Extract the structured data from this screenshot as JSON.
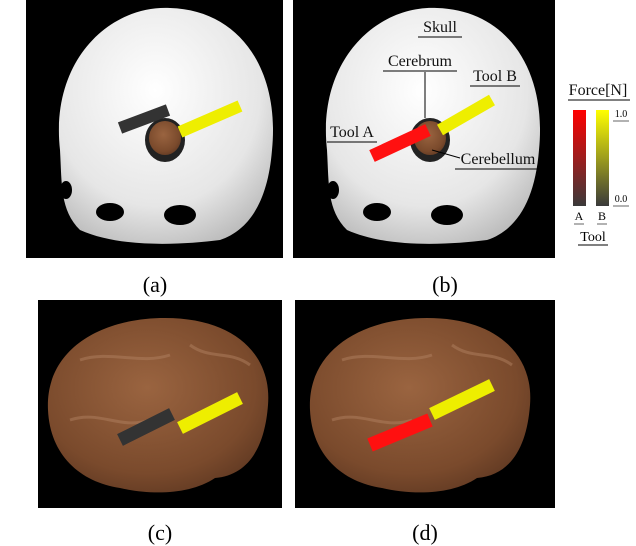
{
  "panels": [
    {
      "caption": "(a)"
    },
    {
      "caption": "(b)"
    },
    {
      "caption": "(c)"
    },
    {
      "caption": "(d)"
    }
  ],
  "annotations": {
    "skull": "Skull",
    "cerebrum": "Cerebrum",
    "tool_b": "Tool B",
    "tool_a": "Tool A",
    "cerebellum": "Cerebellum"
  },
  "colorbar": {
    "title": "Force[N]",
    "max_label": "1.0",
    "min_label": "0.0",
    "tools": [
      "A",
      "B"
    ],
    "axis_label": "Tool"
  }
}
